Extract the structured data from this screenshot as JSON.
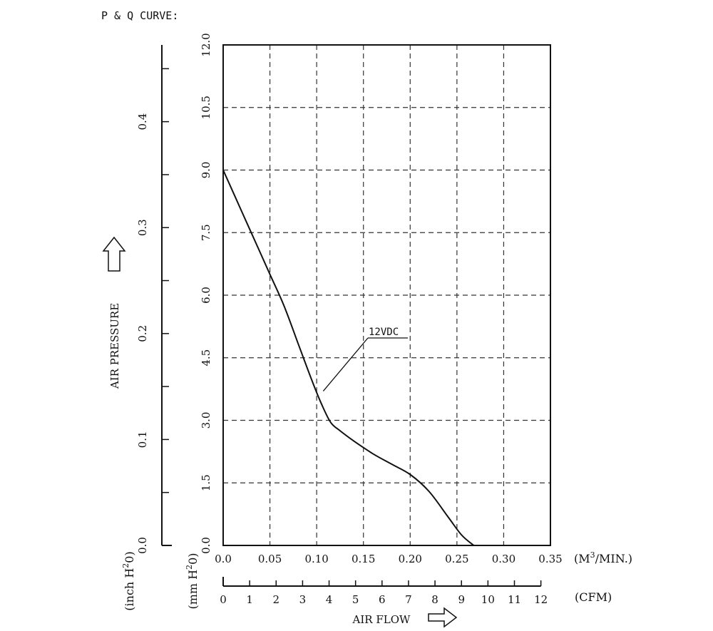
{
  "chart_data": {
    "type": "line",
    "title": "P & Q CURVE:",
    "ylabel": "AIR PRESSURE",
    "xlabel": "AIR FLOW",
    "x_unit": "(M³/MIN.)",
    "x_unit_base": "(M",
    "x_unit_sup": "3",
    "x_unit_tail": "/MIN.)",
    "x2_unit": "(CFM)",
    "y_unit_mm": "(mm H²0)",
    "y_unit_mm_base": "(mm H",
    "y_unit_mm_sup": "2",
    "y_unit_mm_tail": "0)",
    "y_unit_inch": "(inch H²0)",
    "y_unit_inch_base": "(inch H",
    "y_unit_inch_sup": "2",
    "y_unit_inch_tail": "0)",
    "xlim": [
      0,
      0.35
    ],
    "ylim": [
      0,
      12
    ],
    "x_ticks": [
      "0.0",
      "0.05",
      "0.10",
      "0.15",
      "0.20",
      "0.25",
      "0.30",
      "0.35"
    ],
    "y_ticks": [
      "0.0",
      "1.5",
      "3.0",
      "4.5",
      "6.0",
      "7.5",
      "9.0",
      "10.5",
      "12.0"
    ],
    "cfm_ticks": [
      "0",
      "1",
      "2",
      "3",
      "4",
      "5",
      "6",
      "7",
      "8",
      "9",
      "10",
      "11",
      "12"
    ],
    "inch_ticks": [
      "0.0",
      "0.1",
      "0.2",
      "0.3",
      "0.4"
    ],
    "grid": true,
    "series": [
      {
        "name": "12VDC",
        "x": [
          0.0,
          0.02,
          0.04,
          0.05,
          0.065,
          0.08,
          0.095,
          0.105,
          0.115,
          0.125,
          0.14,
          0.16,
          0.18,
          0.2,
          0.22,
          0.24,
          0.255,
          0.268
        ],
        "y": [
          9.0,
          8.0,
          7.0,
          6.5,
          5.75,
          4.85,
          3.95,
          3.4,
          2.95,
          2.75,
          2.5,
          2.2,
          1.95,
          1.7,
          1.3,
          0.7,
          0.25,
          0.0
        ]
      }
    ],
    "annotation": {
      "text": "12VDC",
      "x": 0.107,
      "y": 3.7
    }
  }
}
